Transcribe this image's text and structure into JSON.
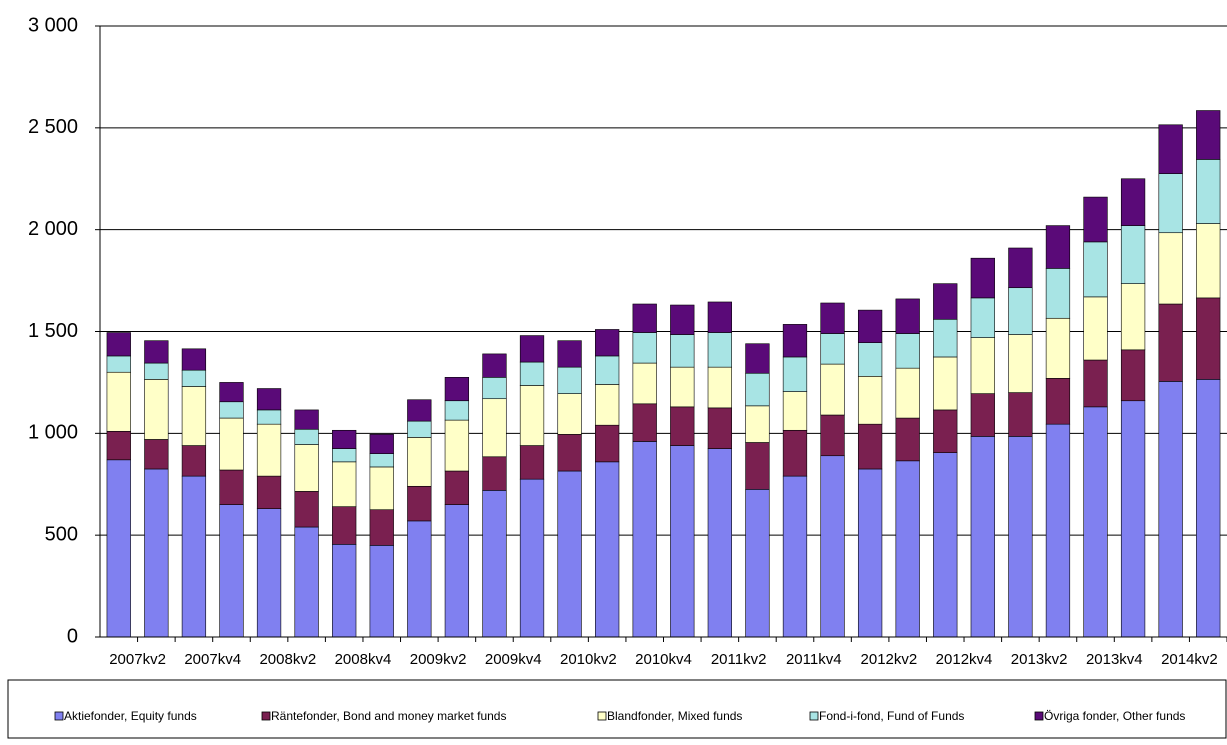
{
  "chart_data": {
    "type": "stacked_bar",
    "categories": [
      "2007kv2",
      null,
      "2007kv4",
      null,
      "2008kv2",
      null,
      "2008kv4",
      null,
      "2009kv2",
      null,
      "2009kv4",
      null,
      "2010kv2",
      null,
      "2010kv4",
      null,
      "2011kv2",
      null,
      "2011kv4",
      null,
      "2012kv2",
      null,
      "2012kv4",
      null,
      "2013kv2",
      null,
      "2013kv4",
      null,
      "2014kv2",
      null
    ],
    "series": [
      {
        "name": "Aktiefonder, Equity funds",
        "color": "#8080f0",
        "values": [
          870,
          825,
          790,
          650,
          630,
          540,
          455,
          450,
          570,
          650,
          720,
          775,
          815,
          860,
          960,
          940,
          925,
          725,
          790,
          890,
          825,
          865,
          905,
          985,
          985,
          1045,
          1130,
          1160,
          1255,
          1265
        ]
      },
      {
        "name": "Räntefonder, Bond and money market funds",
        "color": "#7a2050",
        "values": [
          140,
          145,
          150,
          170,
          160,
          175,
          185,
          175,
          170,
          165,
          165,
          165,
          180,
          180,
          185,
          190,
          200,
          230,
          225,
          200,
          220,
          210,
          210,
          210,
          215,
          225,
          230,
          250,
          380,
          400
        ]
      },
      {
        "name": "Blandfonder, Mixed funds",
        "color": "#ffffc8",
        "values": [
          290,
          295,
          290,
          255,
          255,
          230,
          220,
          210,
          240,
          250,
          285,
          295,
          200,
          200,
          200,
          195,
          200,
          180,
          190,
          250,
          235,
          245,
          260,
          275,
          285,
          295,
          310,
          325,
          350,
          365
        ]
      },
      {
        "name": "Fond-i-fond, Fund of Funds",
        "color": "#a8e4e4",
        "values": [
          80,
          80,
          80,
          80,
          70,
          75,
          65,
          65,
          80,
          95,
          105,
          115,
          130,
          140,
          150,
          160,
          170,
          160,
          170,
          150,
          165,
          170,
          185,
          195,
          230,
          245,
          270,
          285,
          290,
          315
        ]
      },
      {
        "name": "Övriga fonder, Other funds",
        "color": "#5a0a78",
        "values": [
          115,
          110,
          105,
          95,
          105,
          95,
          90,
          95,
          105,
          115,
          115,
          130,
          130,
          130,
          140,
          145,
          150,
          145,
          160,
          150,
          160,
          170,
          175,
          195,
          195,
          210,
          220,
          230,
          240,
          240
        ]
      }
    ],
    "ylim": [
      0,
      3000
    ],
    "yticks": [
      0,
      500,
      {
        "value": 1000,
        "label": "1 000"
      },
      {
        "value": 1500,
        "label": "1 500"
      },
      {
        "value": 2000,
        "label": "2 000"
      },
      {
        "value": 2500,
        "label": "2 500"
      },
      {
        "value": 3000,
        "label": "3 000"
      }
    ],
    "grid": true,
    "legend": "bottom"
  }
}
